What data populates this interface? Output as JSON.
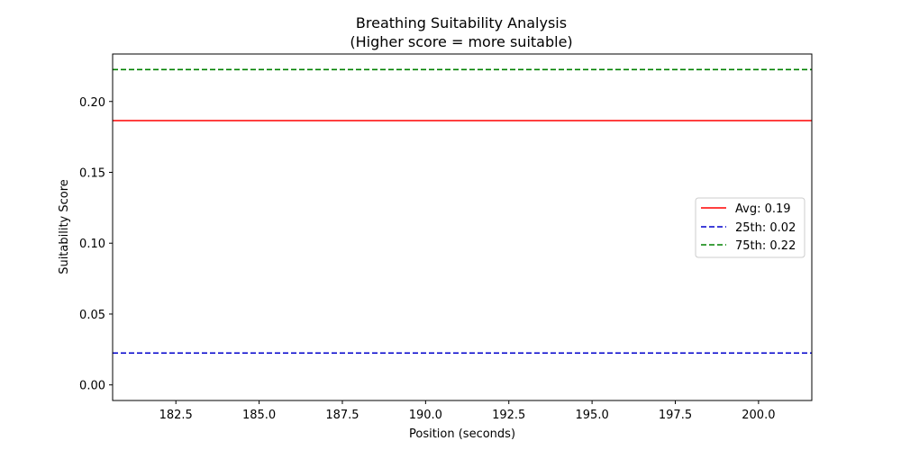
{
  "chart_data": {
    "type": "line",
    "title": "Breathing Suitability Analysis",
    "subtitle": "(Higher score = more suitable)",
    "xlabel": "Position (seconds)",
    "ylabel": "Suitability Score",
    "xlim": [
      180.6,
      201.6
    ],
    "ylim": [
      -0.011,
      0.2335
    ],
    "xticks": [
      "182.5",
      "185.0",
      "187.5",
      "190.0",
      "192.5",
      "195.0",
      "197.5",
      "200.0"
    ],
    "xtick_values": [
      182.5,
      185.0,
      187.5,
      190.0,
      192.5,
      195.0,
      197.5,
      200.0
    ],
    "yticks": [
      "0.00",
      "0.05",
      "0.10",
      "0.15",
      "0.20"
    ],
    "ytick_values": [
      0.0,
      0.05,
      0.1,
      0.15,
      0.2
    ],
    "grid": false,
    "legend_position": "center-right",
    "series": [
      {
        "name": "Avg: 0.19",
        "y": 0.1865,
        "color": "#ff0000",
        "style": "solid"
      },
      {
        "name": "25th: 0.02",
        "y": 0.0225,
        "color": "#0000cc",
        "style": "dashed"
      },
      {
        "name": "75th: 0.22",
        "y": 0.2225,
        "color": "#008000",
        "style": "dashed"
      }
    ]
  }
}
